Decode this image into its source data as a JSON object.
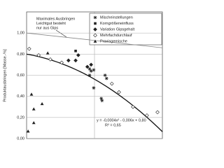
{
  "chart_data": {
    "type": "scatter",
    "ylabel": "Produktausbringen [Masse.-%]",
    "xlim": [
      0,
      36
    ],
    "ylim": [
      0,
      1.2
    ],
    "yticks": [
      {
        "value": 0,
        "label": "0,00"
      },
      {
        "value": 0.2,
        "label": "0,20"
      },
      {
        "value": 0.4,
        "label": "0,40"
      },
      {
        "value": 0.6,
        "label": "0,60"
      },
      {
        "value": 0.8,
        "label": "0,80"
      },
      {
        "value": 1,
        "label": "1,00"
      }
    ],
    "grid": true,
    "legend": "upper right",
    "series": [
      {
        "name": "Mischeinstellungen",
        "marker": "asterisk",
        "color": "#222222",
        "x": [
          16.7,
          17.1,
          17.8,
          16.7,
          20.8,
          21.2,
          17.8,
          19.8,
          20.0
        ],
        "values": [
          0.66,
          0.64,
          0.65,
          0.6,
          0.6,
          0.57,
          0.48,
          0.38,
          0.36
        ]
      },
      {
        "name": "Korngrößeneinfluss",
        "marker": "square",
        "color": "#222222",
        "x": [
          13.0
        ],
        "values": [
          0.83
        ]
      },
      {
        "name": "Variation Gipsgehalt",
        "marker": "diamond",
        "color": "#222222",
        "x": [
          11.1,
          13.0,
          13.7,
          16.1,
          17.1
        ],
        "values": [
          0.74,
          0.74,
          0.79,
          0.68,
          0.7
        ]
      },
      {
        "name": "Mehrfachdurchlauf",
        "marker": "open-diamond",
        "color": "#222222",
        "x": [
          0.7,
          3.2,
          6.3,
          9.3,
          22.6,
          24.5,
          28.2,
          31.9,
          34.7
        ],
        "values": [
          0.85,
          0.79,
          0.75,
          0.72,
          0.52,
          0.44,
          0.3,
          0.22,
          0.25
        ]
      },
      {
        "name": "Praxisgemische",
        "marker": "triangle",
        "color": "#222222",
        "x": [
          5.6,
          1.3,
          1.9,
          1.9,
          0.4,
          4.1
        ],
        "values": [
          0.81,
          0.42,
          0.28,
          0.15,
          0.07,
          0.33
        ]
      }
    ],
    "trendline": {
      "coefficients": [
        -0.0004,
        -0.006,
        0.8
      ],
      "equation": "y = -0,0004x² - 0,006x + 0,80",
      "r2": "R² = 0,65",
      "color": "#111111"
    },
    "max_line": {
      "label": [
        "Maximales Ausbringen",
        "Leichtgut besteht",
        "nur aus Gips"
      ],
      "x": [
        0,
        36
      ],
      "values": [
        1.0,
        0.86
      ],
      "color": "#888888"
    }
  }
}
